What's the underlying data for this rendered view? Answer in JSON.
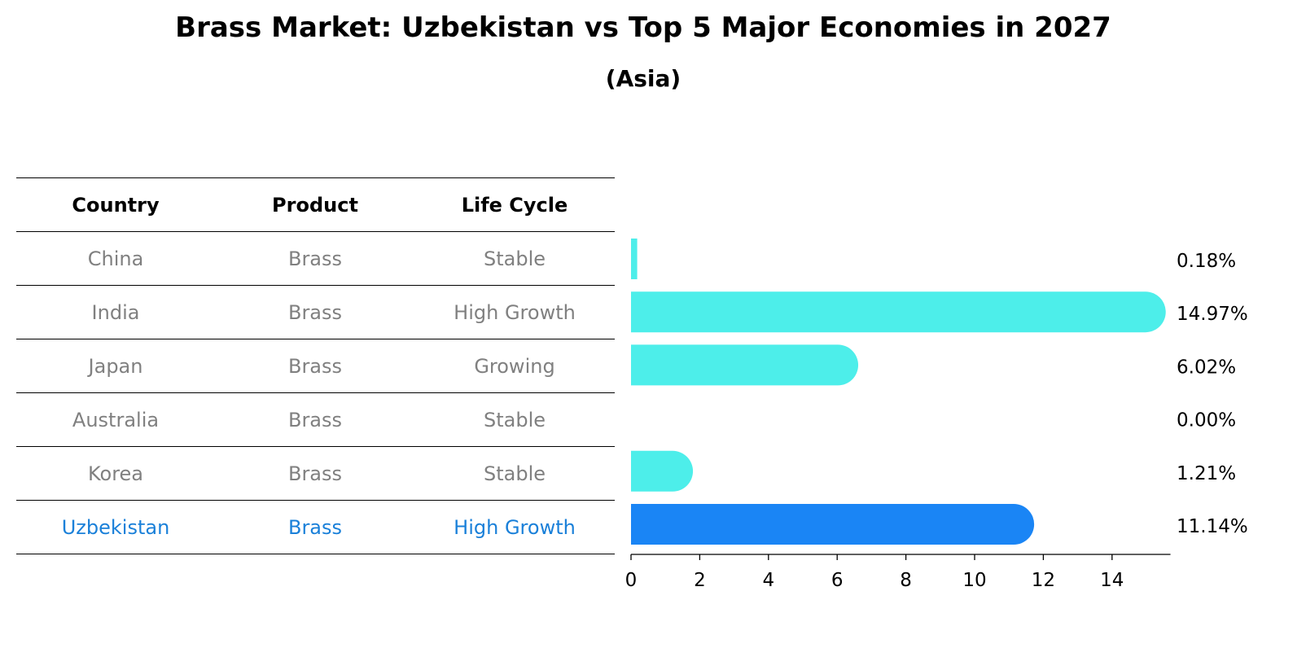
{
  "title": "Brass Market: Uzbekistan vs Top 5 Major Economies in 2027",
  "subtitle": "(Asia)",
  "table": {
    "headers": [
      "Country",
      "Product",
      "Life Cycle"
    ],
    "rows": [
      {
        "country": "China",
        "product": "Brass",
        "life_cycle": "Stable"
      },
      {
        "country": "India",
        "product": "Brass",
        "life_cycle": "High Growth"
      },
      {
        "country": "Japan",
        "product": "Brass",
        "life_cycle": "Growing"
      },
      {
        "country": "Australia",
        "product": "Brass",
        "life_cycle": "Stable"
      },
      {
        "country": "Korea",
        "product": "Brass",
        "life_cycle": "Stable"
      },
      {
        "country": "Uzbekistan",
        "product": "Brass",
        "life_cycle": "High Growth"
      }
    ]
  },
  "chart_data": {
    "type": "bar",
    "orientation": "horizontal",
    "categories": [
      "China",
      "India",
      "Japan",
      "Australia",
      "Korea",
      "Uzbekistan"
    ],
    "values": [
      0.18,
      14.97,
      6.02,
      0.0,
      1.21,
      11.14
    ],
    "value_labels": [
      "0.18%",
      "14.97%",
      "6.02%",
      "0.00%",
      "1.21%",
      "11.14%"
    ],
    "highlight_index": 5,
    "xlim": [
      0,
      15.7
    ],
    "xticks": [
      0,
      2,
      4,
      6,
      8,
      10,
      12,
      14
    ],
    "colors": {
      "default": "#4deeea",
      "highlight": "#1a85f5"
    },
    "grid": false
  }
}
